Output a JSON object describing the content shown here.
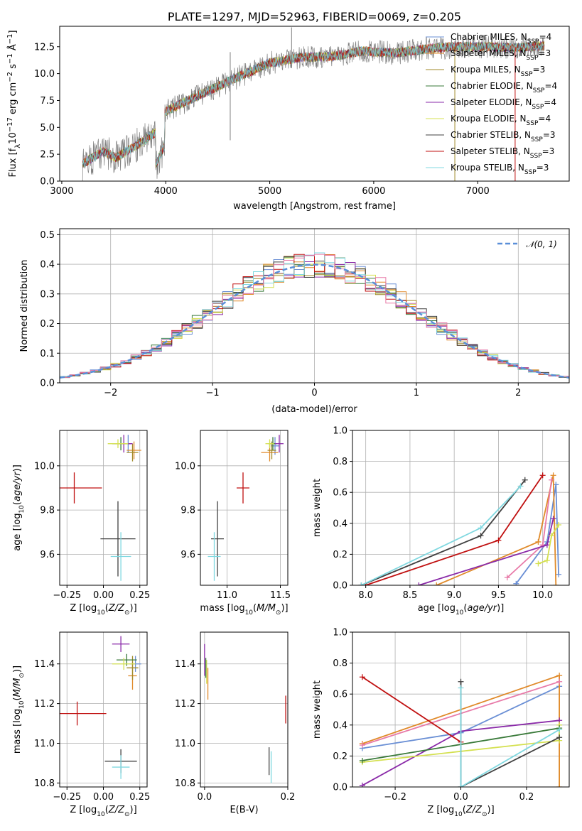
{
  "chart_data": [
    {
      "id": "spectrum",
      "type": "line",
      "title": "PLATE=1297, MJD=52963, FIBERID=0069, z=0.205",
      "xlabel": "wavelength [Angstrom, rest frame]",
      "ylabel": "Flux [f_λ10^-17 erg cm^-2 s^-1 Å^-1]",
      "xlim": [
        2980,
        7880
      ],
      "ylim": [
        0,
        14.4
      ],
      "xticks": [
        3000,
        4000,
        5000,
        6000,
        7000
      ],
      "yticks": [
        0.0,
        2.5,
        5.0,
        7.5,
        10.0,
        12.5
      ],
      "legend_position": "top-right",
      "observed_color": "#808080",
      "series": [
        {
          "name": "Chabrier MILES, N_SSP=4",
          "label": "Chabrier MILES, N",
          "sub": "SSP",
          "tail": "=4",
          "color": "#6a8fd5"
        },
        {
          "name": "Salpeter MILES, N_SSP=3",
          "label": "Salpeter MILES, N",
          "sub": "SSP",
          "tail": "=3",
          "color": "#e08a2a"
        },
        {
          "name": "Kroupa MILES, N_SSP=3",
          "label": "Kroupa MILES, N",
          "sub": "SSP",
          "tail": "=3",
          "color": "#a08a2a"
        },
        {
          "name": "Chabrier ELODIE, N_SSP=4",
          "label": "Chabrier ELODIE, N",
          "sub": "SSP",
          "tail": "=4",
          "color": "#3a7a3a"
        },
        {
          "name": "Salpeter ELODIE, N_SSP=4",
          "label": "Salpeter ELODIE, N",
          "sub": "SSP",
          "tail": "=4",
          "color": "#8a2aa8"
        },
        {
          "name": "Kroupa ELODIE, N_SSP=4",
          "label": "Kroupa ELODIE, N",
          "sub": "SSP",
          "tail": "=4",
          "color": "#d4e050"
        },
        {
          "name": "Chabrier STELIB, N_SSP=3",
          "label": "Chabrier STELIB, N",
          "sub": "SSP",
          "tail": "=3",
          "color": "#404040"
        },
        {
          "name": "Salpeter STELIB, N_SSP=3",
          "label": "Salpeter STELIB, N",
          "sub": "SSP",
          "tail": "=3",
          "color": "#c01010"
        },
        {
          "name": "Kroupa STELIB, N_SSP=3",
          "label": "Kroupa STELIB, N",
          "sub": "SSP",
          "tail": "=3",
          "color": "#80d8e0"
        }
      ],
      "continuum_knots": {
        "x": [
          3200,
          3400,
          3520,
          3700,
          3900,
          4000,
          4300,
          4500,
          4700,
          5000,
          5300,
          5600,
          5900,
          6200,
          6500,
          6800,
          7100,
          7400,
          7600
        ],
        "y": [
          1.6,
          2.8,
          2.2,
          3.2,
          4.5,
          6.5,
          7.9,
          8.8,
          9.7,
          11.0,
          11.5,
          11.6,
          12.1,
          11.9,
          12.3,
          12.5,
          12.5,
          12.4,
          12.6
        ]
      }
    },
    {
      "id": "residuals",
      "type": "line",
      "xlabel": "(data-model)/error",
      "ylabel": "Normed distribution",
      "xlim": [
        -2.5,
        2.5
      ],
      "ylim": [
        0,
        0.52
      ],
      "xticks": [
        -2,
        -1,
        0,
        1,
        2
      ],
      "yticks": [
        0.0,
        0.1,
        0.2,
        0.3,
        0.4,
        0.5
      ],
      "legend_position": "top-right",
      "reference_curve": {
        "name": "𝒩(0, 1)",
        "color": "#5a8fd8"
      },
      "bin_width": 0.1
    },
    {
      "id": "age_vs_Z",
      "type": "scatter",
      "xlabel": "Z [log10(Z/Z☉)]",
      "ylabel": "age  [log10(age/yr)]",
      "xlim": [
        -0.3,
        0.3
      ],
      "ylim": [
        9.46,
        10.16
      ],
      "xticks": [
        -0.25,
        0.0,
        0.25
      ],
      "yticks": [
        9.6,
        9.8,
        10.0
      ],
      "points": [
        {
          "x": 0.17,
          "y": 10.1,
          "xerr": 0.02,
          "yerr": 0.04,
          "color": "#6a8fd5"
        },
        {
          "x": 0.21,
          "y": 10.07,
          "xerr": 0.05,
          "yerr": 0.04,
          "color": "#e08a2a"
        },
        {
          "x": 0.2,
          "y": 10.06,
          "xerr": 0.04,
          "yerr": 0.04,
          "color": "#a08a2a"
        },
        {
          "x": 0.12,
          "y": 10.1,
          "xerr": 0.06,
          "yerr": 0.03,
          "color": "#3a7a3a"
        },
        {
          "x": 0.14,
          "y": 10.1,
          "xerr": 0.06,
          "yerr": 0.04,
          "color": "#8a2aa8"
        },
        {
          "x": 0.1,
          "y": 10.1,
          "xerr": 0.07,
          "yerr": 0.02,
          "color": "#d4e050"
        },
        {
          "x": 0.1,
          "y": 9.67,
          "xerr": 0.12,
          "yerr": 0.17,
          "color": "#404040"
        },
        {
          "x": -0.2,
          "y": 9.9,
          "xerr": 0.19,
          "yerr": 0.07,
          "color": "#c01010"
        },
        {
          "x": 0.12,
          "y": 9.59,
          "xerr": 0.07,
          "yerr": 0.11,
          "color": "#80d8e0"
        }
      ]
    },
    {
      "id": "age_vs_mass",
      "type": "scatter",
      "xlabel": "mass [log10(M/M☉)]",
      "ylabel": "",
      "xlim": [
        10.75,
        11.57
      ],
      "ylim": [
        9.46,
        10.16
      ],
      "xticks": [
        11.0,
        11.5
      ],
      "yticks": [
        9.6,
        9.8,
        10.0
      ],
      "points": [
        {
          "x": 11.45,
          "y": 10.09,
          "xerr": 0.04,
          "yerr": 0.04,
          "color": "#6a8fd5"
        },
        {
          "x": 11.4,
          "y": 10.06,
          "xerr": 0.08,
          "yerr": 0.04,
          "color": "#e08a2a"
        },
        {
          "x": 11.42,
          "y": 10.07,
          "xerr": 0.04,
          "yerr": 0.04,
          "color": "#a08a2a"
        },
        {
          "x": 11.43,
          "y": 10.1,
          "xerr": 0.04,
          "yerr": 0.03,
          "color": "#3a7a3a"
        },
        {
          "x": 11.49,
          "y": 10.1,
          "xerr": 0.04,
          "yerr": 0.04,
          "color": "#8a2aa8"
        },
        {
          "x": 11.4,
          "y": 10.1,
          "xerr": 0.04,
          "yerr": 0.02,
          "color": "#d4e050"
        },
        {
          "x": 10.91,
          "y": 9.67,
          "xerr": 0.06,
          "yerr": 0.17,
          "color": "#404040"
        },
        {
          "x": 11.15,
          "y": 9.9,
          "xerr": 0.06,
          "yerr": 0.07,
          "color": "#c01010"
        },
        {
          "x": 10.88,
          "y": 9.59,
          "xerr": 0.06,
          "yerr": 0.11,
          "color": "#80d8e0"
        }
      ]
    },
    {
      "id": "weight_vs_age",
      "type": "line",
      "xlabel": "age  [log10(age/yr)]",
      "ylabel": "mass weight",
      "xlim": [
        7.85,
        10.3
      ],
      "ylim": [
        0,
        1.0
      ],
      "xticks": [
        8.0,
        8.5,
        9.0,
        9.5,
        10.0
      ],
      "yticks": [
        0.0,
        0.2,
        0.4,
        0.6,
        0.8,
        1.0
      ],
      "series": [
        {
          "color": "#6a8fd5",
          "x": [
            9.7,
            10.05,
            10.15,
            10.18
          ],
          "y": [
            0.01,
            0.28,
            0.65,
            0.07
          ]
        },
        {
          "color": "#e08a2a",
          "x": [
            8.8,
            9.95,
            10.12,
            10.15
          ],
          "y": [
            0.0,
            0.28,
            0.71,
            0.0
          ]
        },
        {
          "color": "#e87aa8",
          "x": [
            9.6,
            10.0,
            10.1
          ],
          "y": [
            0.05,
            0.26,
            0.68
          ]
        },
        {
          "color": "#8a2aa8",
          "x": [
            8.6,
            10.05,
            10.12
          ],
          "y": [
            0.0,
            0.26,
            0.43
          ]
        },
        {
          "color": "#d4e050",
          "x": [
            9.95,
            10.05,
            10.1,
            10.18
          ],
          "y": [
            0.14,
            0.16,
            0.32,
            0.39
          ]
        },
        {
          "color": "#404040",
          "x": [
            7.95,
            9.3,
            9.8
          ],
          "y": [
            0.0,
            0.32,
            0.68
          ]
        },
        {
          "color": "#c01010",
          "x": [
            8.0,
            9.5,
            10.0
          ],
          "y": [
            0.0,
            0.29,
            0.71
          ]
        },
        {
          "color": "#80d8e0",
          "x": [
            7.95,
            9.3,
            9.75
          ],
          "y": [
            0.0,
            0.37,
            0.64
          ]
        }
      ]
    },
    {
      "id": "mass_vs_Z",
      "type": "scatter",
      "xlabel": "Z [log10(Z/Z☉)]",
      "ylabel": "mass [log10(M/M☉)]",
      "xlim": [
        -0.3,
        0.3
      ],
      "ylim": [
        10.78,
        11.56
      ],
      "xticks": [
        -0.25,
        0.0,
        0.25
      ],
      "yticks": [
        10.8,
        11.0,
        11.2,
        11.4
      ],
      "points": [
        {
          "x": 0.22,
          "y": 11.4,
          "xerr": 0.04,
          "yerr": 0.04,
          "color": "#6a8fd5"
        },
        {
          "x": 0.2,
          "y": 11.34,
          "xerr": 0.03,
          "yerr": 0.07,
          "color": "#e08a2a"
        },
        {
          "x": 0.2,
          "y": 11.38,
          "xerr": 0.04,
          "yerr": 0.06,
          "color": "#a08a2a"
        },
        {
          "x": 0.16,
          "y": 11.42,
          "xerr": 0.07,
          "yerr": 0.03,
          "color": "#3a7a3a"
        },
        {
          "x": 0.12,
          "y": 11.5,
          "xerr": 0.06,
          "yerr": 0.04,
          "color": "#8a2aa8"
        },
        {
          "x": 0.14,
          "y": 11.4,
          "xerr": 0.08,
          "yerr": 0.03,
          "color": "#d4e050"
        },
        {
          "x": 0.12,
          "y": 10.91,
          "xerr": 0.11,
          "yerr": 0.06,
          "color": "#404040"
        },
        {
          "x": -0.18,
          "y": 11.15,
          "xerr": 0.2,
          "yerr": 0.06,
          "color": "#c01010"
        },
        {
          "x": 0.12,
          "y": 10.88,
          "xerr": 0.06,
          "yerr": 0.06,
          "color": "#80d8e0"
        }
      ]
    },
    {
      "id": "mass_vs_ebv",
      "type": "scatter",
      "xlabel": "E(B-V)",
      "ylabel": "",
      "xlim": [
        -0.01,
        0.2
      ],
      "ylim": [
        10.78,
        11.56
      ],
      "xticks": [
        0.0,
        0.2
      ],
      "yticks": [
        10.8,
        11.0,
        11.2,
        11.4
      ],
      "points": [
        {
          "x": 0.0,
          "y": 11.42,
          "xerr": 0.0,
          "yerr": 0.08,
          "color": "#8a2aa8"
        },
        {
          "x": 0.005,
          "y": 11.36,
          "xerr": 0.0,
          "yerr": 0.06,
          "color": "#d4e050"
        },
        {
          "x": 0.008,
          "y": 11.3,
          "xerr": 0.0,
          "yerr": 0.08,
          "color": "#e08a2a"
        },
        {
          "x": 0.003,
          "y": 11.38,
          "xerr": 0.0,
          "yerr": 0.05,
          "color": "#3a7a3a"
        },
        {
          "x": 0.155,
          "y": 10.91,
          "xerr": 0.0,
          "yerr": 0.07,
          "color": "#404040"
        },
        {
          "x": 0.16,
          "y": 10.88,
          "xerr": 0.0,
          "yerr": 0.08,
          "color": "#80d8e0"
        },
        {
          "x": 0.195,
          "y": 11.17,
          "xerr": 0.0,
          "yerr": 0.07,
          "color": "#c01010"
        }
      ]
    },
    {
      "id": "weight_vs_Z",
      "type": "line",
      "xlabel": "Z [log10(Z/Z☉)]",
      "ylabel": "mass weight",
      "xlim": [
        -0.33,
        0.33
      ],
      "ylim": [
        0,
        1.0
      ],
      "xticks": [
        -0.2,
        0.0,
        0.2
      ],
      "yticks": [
        0.0,
        0.2,
        0.4,
        0.6,
        0.8,
        1.0
      ],
      "series": [
        {
          "color": "#6a8fd5",
          "x": [
            -0.3,
            0.0,
            0.3
          ],
          "y": [
            0.25,
            0.35,
            0.65
          ]
        },
        {
          "color": "#e08a2a",
          "x": [
            -0.3,
            0.3,
            0.3
          ],
          "y": [
            0.28,
            0.72,
            0.0
          ]
        },
        {
          "color": "#e87aa8",
          "x": [
            -0.3,
            0.3
          ],
          "y": [
            0.27,
            0.68
          ]
        },
        {
          "color": "#8a2aa8",
          "x": [
            -0.3,
            0.0,
            0.3
          ],
          "y": [
            0.01,
            0.36,
            0.43
          ]
        },
        {
          "color": "#d4e050",
          "x": [
            -0.3,
            0.3,
            0.3
          ],
          "y": [
            0.16,
            0.3,
            0.4
          ]
        },
        {
          "color": "#3a7a3a",
          "x": [
            -0.3,
            0.3
          ],
          "y": [
            0.17,
            0.38
          ]
        },
        {
          "color": "#404040",
          "x": [
            0.0,
            0.0,
            0.3
          ],
          "y": [
            0.68,
            0.0,
            0.32
          ]
        },
        {
          "color": "#c01010",
          "x": [
            -0.3,
            0.0
          ],
          "y": [
            0.71,
            0.29
          ]
        },
        {
          "color": "#80d8e0",
          "x": [
            0.0,
            0.0,
            0.3
          ],
          "y": [
            0.64,
            0.0,
            0.37
          ]
        }
      ]
    }
  ]
}
